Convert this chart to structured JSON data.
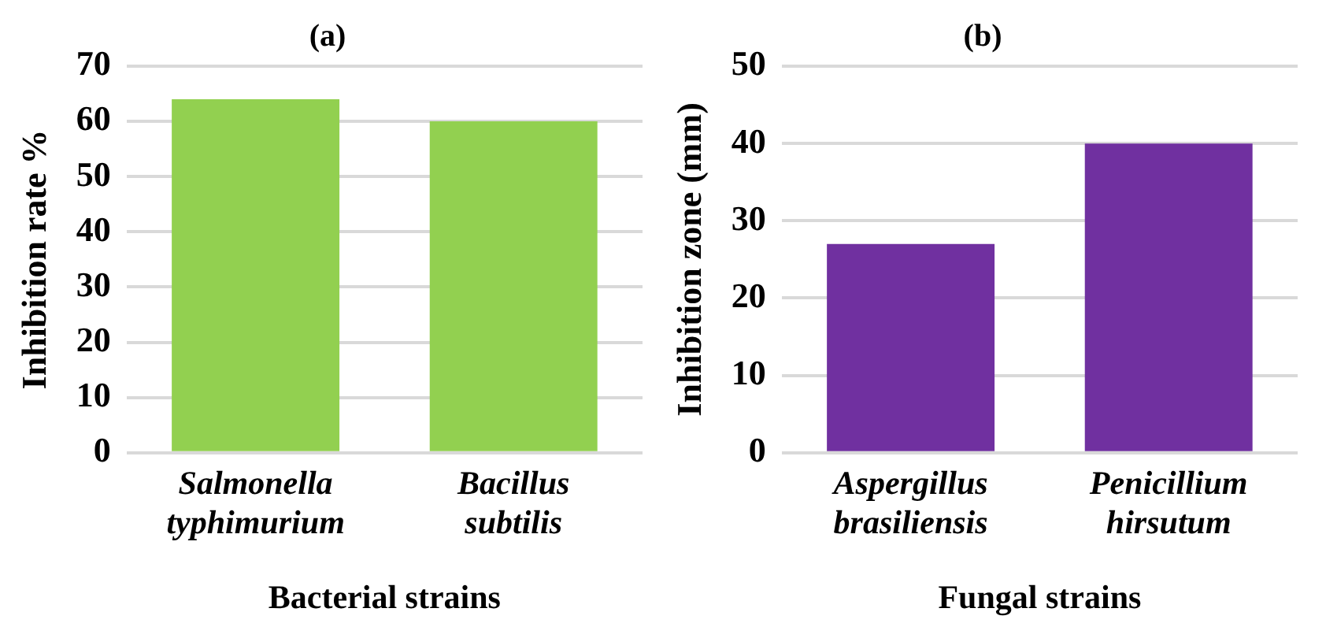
{
  "chart_data": [
    {
      "type": "bar",
      "title": "(a)",
      "xlabel": "Bacterial strains",
      "ylabel": "Inhibition rate %",
      "categories": [
        "Salmonella typhimurium",
        "Bacillus subtilis"
      ],
      "values": [
        64,
        60
      ],
      "color": "#92d050",
      "ylim": [
        0,
        70
      ],
      "yticks": [
        0,
        10,
        20,
        30,
        40,
        50,
        60,
        70
      ],
      "grid": "y"
    },
    {
      "type": "bar",
      "title": "(b)",
      "xlabel": "Fungal strains",
      "ylabel": "Inhibition zone (mm)",
      "categories": [
        "Aspergillus brasiliensis",
        "Penicillium hirsutum"
      ],
      "values": [
        27,
        40
      ],
      "color": "#7030a0",
      "ylim": [
        0,
        50
      ],
      "yticks": [
        0,
        10,
        20,
        30,
        40,
        50
      ],
      "grid": "y"
    }
  ]
}
